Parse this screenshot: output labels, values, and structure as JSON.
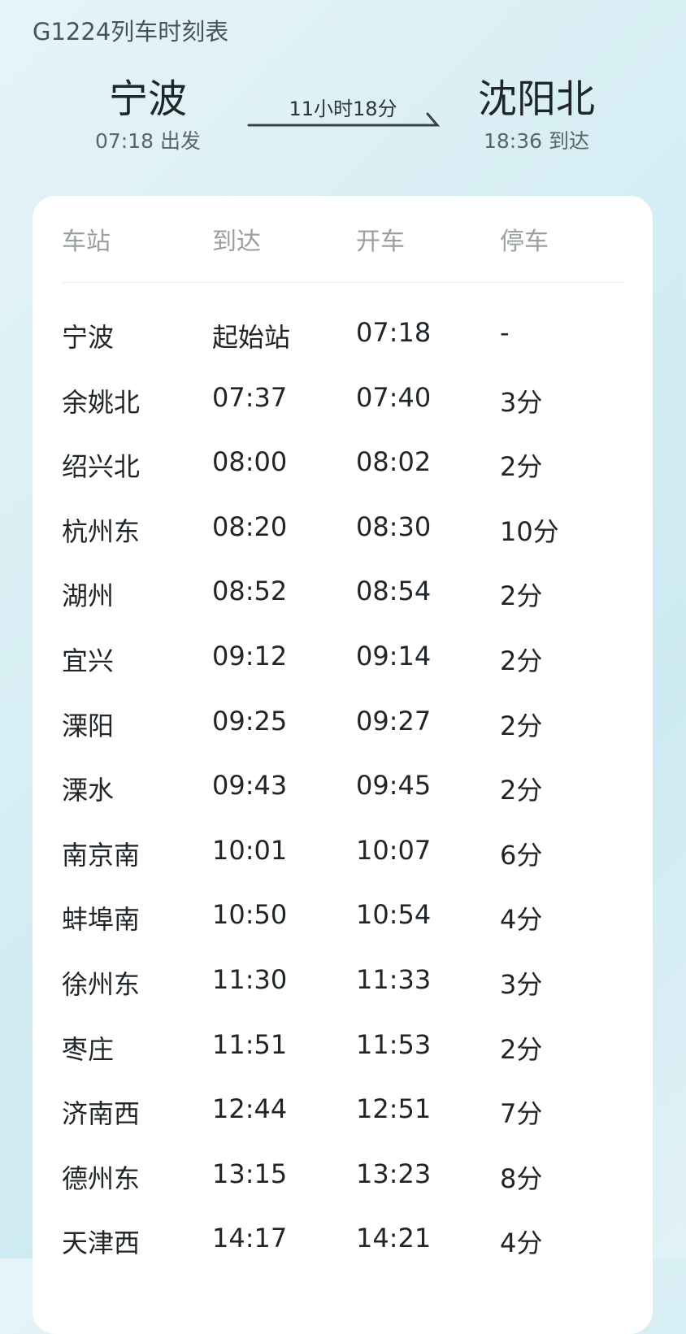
{
  "title": "G1224列车时刻表",
  "route": {
    "from": {
      "name": "宁波",
      "time": "07:18 出发"
    },
    "to": {
      "name": "沈阳北",
      "time": "18:36 到达"
    },
    "duration": "11小时18分"
  },
  "table": {
    "headers": [
      "车站",
      "到达",
      "开车",
      "停车"
    ],
    "rows": [
      [
        "宁波",
        "起始站",
        "07:18",
        "-"
      ],
      [
        "余姚北",
        "07:37",
        "07:40",
        "3分"
      ],
      [
        "绍兴北",
        "08:00",
        "08:02",
        "2分"
      ],
      [
        "杭州东",
        "08:20",
        "08:30",
        "10分"
      ],
      [
        "湖州",
        "08:52",
        "08:54",
        "2分"
      ],
      [
        "宜兴",
        "09:12",
        "09:14",
        "2分"
      ],
      [
        "溧阳",
        "09:25",
        "09:27",
        "2分"
      ],
      [
        "溧水",
        "09:43",
        "09:45",
        "2分"
      ],
      [
        "南京南",
        "10:01",
        "10:07",
        "6分"
      ],
      [
        "蚌埠南",
        "10:50",
        "10:54",
        "4分"
      ],
      [
        "徐州东",
        "11:30",
        "11:33",
        "3分"
      ],
      [
        "枣庄",
        "11:51",
        "11:53",
        "2分"
      ],
      [
        "济南西",
        "12:44",
        "12:51",
        "7分"
      ],
      [
        "德州东",
        "13:15",
        "13:23",
        "8分"
      ],
      [
        "天津西",
        "14:17",
        "14:21",
        "4分"
      ]
    ]
  }
}
